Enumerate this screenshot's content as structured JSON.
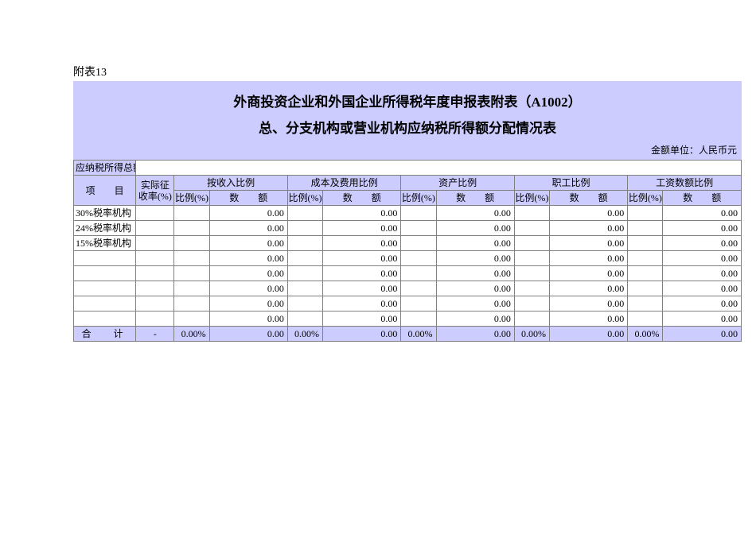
{
  "label": "附表13",
  "title1": "外商投资企业和外国企业所得税年度申报表附表（A1002）",
  "title2": "总、分支机构或营业机构应纳税所得额分配情况表",
  "unit": "金额单位：人民币元",
  "headers": {
    "total_income": "应纳税所得总额",
    "item": "项　　目",
    "actual_rate": "实际征收率(%)",
    "groups": [
      "按收入比例",
      "成本及费用比例",
      "资产比例",
      "职工比例",
      "工资数额比例"
    ],
    "pct": "比例(%)",
    "amt": "数　　额"
  },
  "rows": [
    {
      "label": "30%税率机构",
      "amts": [
        "0.00",
        "0.00",
        "0.00",
        "0.00",
        "0.00"
      ]
    },
    {
      "label": "24%税率机构",
      "amts": [
        "0.00",
        "0.00",
        "0.00",
        "0.00",
        "0.00"
      ]
    },
    {
      "label": "15%税率机构",
      "amts": [
        "0.00",
        "0.00",
        "0.00",
        "0.00",
        "0.00"
      ]
    },
    {
      "label": "",
      "amts": [
        "0.00",
        "0.00",
        "0.00",
        "0.00",
        "0.00"
      ]
    },
    {
      "label": "",
      "amts": [
        "0.00",
        "0.00",
        "0.00",
        "0.00",
        "0.00"
      ]
    },
    {
      "label": "",
      "amts": [
        "0.00",
        "0.00",
        "0.00",
        "0.00",
        "0.00"
      ]
    },
    {
      "label": "",
      "amts": [
        "0.00",
        "0.00",
        "0.00",
        "0.00",
        "0.00"
      ]
    },
    {
      "label": "",
      "amts": [
        "0.00",
        "0.00",
        "0.00",
        "0.00",
        "0.00"
      ]
    }
  ],
  "total": {
    "label": "合　计",
    "rate": "-",
    "pcts": [
      "0.00%",
      "0.00%",
      "0.00%",
      "0.00%",
      "0.00%"
    ],
    "amts": [
      "0.00",
      "0.00",
      "0.00",
      "0.00",
      "0.00"
    ]
  }
}
